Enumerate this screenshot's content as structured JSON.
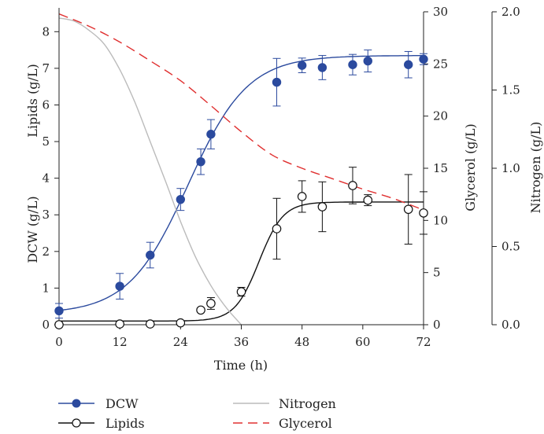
{
  "chart_data": {
    "type": "line",
    "xlabel": "Time (h)",
    "x_ticks": [
      0,
      12,
      24,
      36,
      48,
      60,
      72
    ],
    "xlim": [
      0,
      72
    ],
    "left_axis": {
      "label_upper": "Lipids (g/L)",
      "label_lower": "DCW (g/L)",
      "ylim": [
        0,
        8.5
      ],
      "ticks": [
        0,
        1,
        2,
        3,
        4,
        5,
        6,
        7,
        8
      ]
    },
    "glycerol_axis": {
      "label": "Glycerol (g/L)",
      "ylim": [
        0,
        30
      ],
      "ticks": [
        0,
        5,
        10,
        15,
        20,
        25,
        30
      ]
    },
    "nitrogen_axis": {
      "label": "Nitrogen (g/L)",
      "ylim": [
        0,
        2.0
      ],
      "ticks": [
        "0.0",
        "0.5",
        "1.0",
        "1.5",
        "2.0"
      ]
    },
    "series": [
      {
        "name": "DCW",
        "axis": "left",
        "color": "#2b4a9e",
        "marker": "filled-circle",
        "points": [
          {
            "x": 0,
            "y": 0.38,
            "err": 0.2
          },
          {
            "x": 12,
            "y": 1.05,
            "err": 0.35
          },
          {
            "x": 18,
            "y": 1.9,
            "err": 0.35
          },
          {
            "x": 24,
            "y": 3.42,
            "err": 0.3
          },
          {
            "x": 28,
            "y": 4.45,
            "err": 0.35
          },
          {
            "x": 30,
            "y": 5.2,
            "err": 0.4
          },
          {
            "x": 43,
            "y": 6.62,
            "err": 0.65
          },
          {
            "x": 48,
            "y": 7.08,
            "err": 0.2
          },
          {
            "x": 52,
            "y": 7.02,
            "err": 0.33
          },
          {
            "x": 58,
            "y": 7.1,
            "err": 0.28
          },
          {
            "x": 61,
            "y": 7.2,
            "err": 0.3
          },
          {
            "x": 69,
            "y": 7.1,
            "err": 0.36
          },
          {
            "x": 72,
            "y": 7.25,
            "err": 0.15
          }
        ],
        "fit": {
          "model": "logistic",
          "base": 0.3,
          "max": 7.35,
          "k": 0.17,
          "t0": 25.5
        }
      },
      {
        "name": "Lipids",
        "axis": "left",
        "color": "#111111",
        "marker": "open-circle",
        "points": [
          {
            "x": 0,
            "y": 0.0,
            "err": 0
          },
          {
            "x": 12,
            "y": 0.02,
            "err": 0
          },
          {
            "x": 18,
            "y": 0.02,
            "err": 0
          },
          {
            "x": 24,
            "y": 0.05,
            "err": 0
          },
          {
            "x": 28,
            "y": 0.4,
            "err": 0
          },
          {
            "x": 30,
            "y": 0.58,
            "err": 0.16
          },
          {
            "x": 36,
            "y": 0.9,
            "err": 0.12
          },
          {
            "x": 43,
            "y": 2.62,
            "err": 0.83
          },
          {
            "x": 48,
            "y": 3.5,
            "err": 0.43
          },
          {
            "x": 52,
            "y": 3.22,
            "err": 0.68
          },
          {
            "x": 58,
            "y": 3.8,
            "err": 0.5
          },
          {
            "x": 61,
            "y": 3.4,
            "err": 0.15
          },
          {
            "x": 69,
            "y": 3.15,
            "err": 0.95
          },
          {
            "x": 72,
            "y": 3.05,
            "err": 0.58
          }
        ],
        "fit": {
          "model": "logistic",
          "base": 0.1,
          "max": 3.35,
          "k": 0.42,
          "t0": 39.5
        }
      },
      {
        "name": "Nitrogen",
        "axis": "nitrogen",
        "color": "#bbbbbb",
        "style": "solid",
        "points": [
          {
            "x": 0,
            "y": 1.96
          },
          {
            "x": 3,
            "y": 1.94
          },
          {
            "x": 6,
            "y": 1.88
          },
          {
            "x": 9,
            "y": 1.79
          },
          {
            "x": 12,
            "y": 1.63
          },
          {
            "x": 15,
            "y": 1.42
          },
          {
            "x": 18,
            "y": 1.17
          },
          {
            "x": 21,
            "y": 0.92
          },
          {
            "x": 24,
            "y": 0.66
          },
          {
            "x": 27,
            "y": 0.43
          },
          {
            "x": 30,
            "y": 0.25
          },
          {
            "x": 33,
            "y": 0.11
          },
          {
            "x": 36,
            "y": 0.0
          }
        ]
      },
      {
        "name": "Glycerol",
        "axis": "glycerol",
        "color": "#e03030",
        "style": "dashed",
        "points": [
          {
            "x": 0,
            "y": 29.8
          },
          {
            "x": 6,
            "y": 28.6
          },
          {
            "x": 12,
            "y": 27.1
          },
          {
            "x": 18,
            "y": 25.3
          },
          {
            "x": 24,
            "y": 23.4
          },
          {
            "x": 30,
            "y": 21.0
          },
          {
            "x": 36,
            "y": 18.5
          },
          {
            "x": 42,
            "y": 16.3
          },
          {
            "x": 48,
            "y": 15.0
          },
          {
            "x": 54,
            "y": 14.0
          },
          {
            "x": 60,
            "y": 13.0
          },
          {
            "x": 66,
            "y": 12.1
          },
          {
            "x": 72,
            "y": 11.0
          }
        ]
      }
    ],
    "legend": [
      {
        "label": "DCW",
        "series": "DCW"
      },
      {
        "label": "Nitrogen",
        "series": "Nitrogen"
      },
      {
        "label": "Lipids",
        "series": "Lipids"
      },
      {
        "label": "Glycerol",
        "series": "Glycerol"
      }
    ],
    "legend_position": "bottom"
  }
}
